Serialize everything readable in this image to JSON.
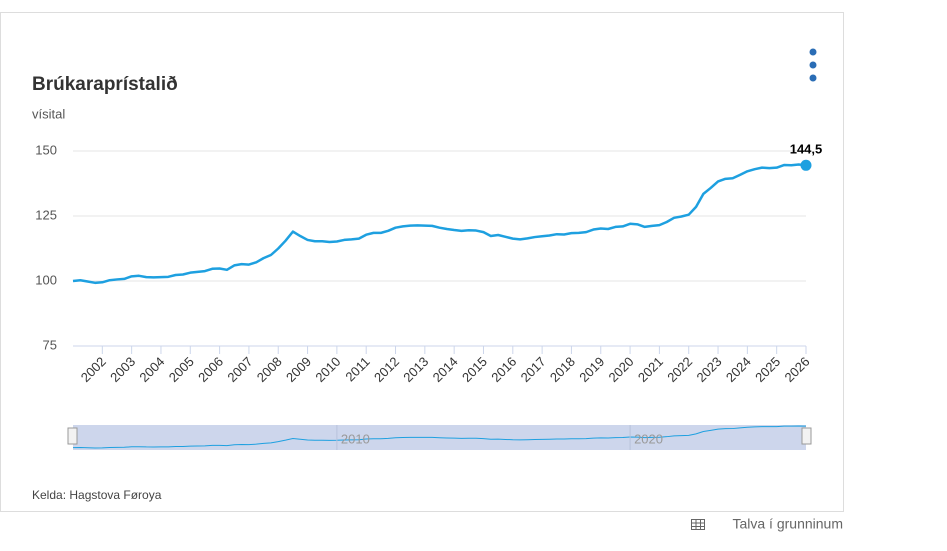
{
  "chart_data": {
    "type": "line",
    "title": "Brúkaraprístalið",
    "subtitle": "vísital",
    "source": "Kelda: Hagstova Føroya",
    "link": "Talva í grunninum",
    "color": "#1ea0e0",
    "x": [
      2001,
      2001.25,
      2001.5,
      2001.75,
      2002,
      2002.25,
      2002.5,
      2002.75,
      2003,
      2003.25,
      2003.5,
      2003.75,
      2004,
      2004.25,
      2004.5,
      2004.75,
      2005,
      2005.25,
      2005.5,
      2005.75,
      2006,
      2006.25,
      2006.5,
      2006.75,
      2007,
      2007.25,
      2007.5,
      2007.75,
      2008,
      2008.25,
      2008.5,
      2008.75,
      2009,
      2009.25,
      2009.5,
      2009.75,
      2010,
      2010.25,
      2010.5,
      2010.75,
      2011,
      2011.25,
      2011.5,
      2011.75,
      2012,
      2012.25,
      2012.5,
      2012.75,
      2013,
      2013.25,
      2013.5,
      2013.75,
      2014,
      2014.25,
      2014.5,
      2014.75,
      2015,
      2015.25,
      2015.5,
      2015.75,
      2016,
      2016.25,
      2016.5,
      2016.75,
      2017,
      2017.25,
      2017.5,
      2017.75,
      2018,
      2018.25,
      2018.5,
      2018.75,
      2019,
      2019.25,
      2019.5,
      2019.75,
      2020,
      2020.25,
      2020.5,
      2020.75,
      2021,
      2021.25,
      2021.5,
      2021.75,
      2022,
      2022.25,
      2022.5,
      2022.75,
      2023,
      2023.25,
      2023.5,
      2023.75,
      2024,
      2024.25,
      2024.5,
      2024.75,
      2025,
      2025.25,
      2025.5,
      2025.75,
      2026
    ],
    "values": [
      100.0,
      100.3,
      99.8,
      99.3,
      99.5,
      100.3,
      100.6,
      100.8,
      101.8,
      102.0,
      101.5,
      101.4,
      101.5,
      101.6,
      102.3,
      102.5,
      103.2,
      103.5,
      103.8,
      104.7,
      104.8,
      104.3,
      106.0,
      106.5,
      106.3,
      107.2,
      108.8,
      110.0,
      112.5,
      115.5,
      119.0,
      117.3,
      115.8,
      115.3,
      115.3,
      115.0,
      115.2,
      115.8,
      116.0,
      116.3,
      117.8,
      118.5,
      118.5,
      119.3,
      120.5,
      121.0,
      121.3,
      121.4,
      121.3,
      121.2,
      120.5,
      120.0,
      119.6,
      119.3,
      119.5,
      119.4,
      118.8,
      117.3,
      117.7,
      117.0,
      116.3,
      116.0,
      116.4,
      116.9,
      117.2,
      117.5,
      118.0,
      117.9,
      118.4,
      118.5,
      118.8,
      119.8,
      120.2,
      120.0,
      120.8,
      121.0,
      122.0,
      121.8,
      120.8,
      121.2,
      121.5,
      122.7,
      124.3,
      124.8,
      125.5,
      128.5,
      133.5,
      135.8,
      138.3,
      139.3,
      139.5,
      140.8,
      142.2,
      143.0,
      143.6,
      143.4,
      143.6,
      144.6,
      144.5,
      144.8,
      144.5
    ],
    "value_labels": [
      null,
      null,
      null,
      null,
      null,
      null,
      null,
      null,
      null,
      null,
      null,
      null,
      null,
      null,
      null,
      null,
      null,
      null,
      null,
      null,
      null,
      null,
      null,
      null,
      null,
      null,
      null,
      null,
      null,
      null,
      null,
      null,
      null,
      null,
      null,
      null,
      null,
      null,
      null,
      null,
      null,
      null,
      null,
      null,
      null,
      null,
      null,
      null,
      null,
      null,
      null,
      null,
      null,
      null,
      null,
      null,
      null,
      null,
      null,
      null,
      null,
      null,
      null,
      null,
      null,
      null,
      null,
      null,
      null,
      null,
      null,
      null,
      null,
      null,
      null,
      null,
      null,
      null,
      null,
      null,
      null,
      null,
      null,
      null,
      null,
      null,
      null,
      null,
      null,
      null,
      null,
      null,
      null,
      null,
      null,
      null,
      null,
      null,
      null,
      null,
      "144,5"
    ],
    "xlim": [
      2001,
      2026
    ],
    "xticks": [
      2002,
      2003,
      2004,
      2005,
      2006,
      2007,
      2008,
      2009,
      2010,
      2011,
      2012,
      2013,
      2014,
      2015,
      2016,
      2017,
      2018,
      2019,
      2020,
      2021,
      2022,
      2023,
      2024,
      2025,
      2026
    ],
    "ylim": [
      75,
      150
    ],
    "yticks": [
      75,
      100,
      125,
      150
    ],
    "grid": true,
    "navigator": {
      "xticks": [
        2010,
        2020
      ]
    }
  }
}
